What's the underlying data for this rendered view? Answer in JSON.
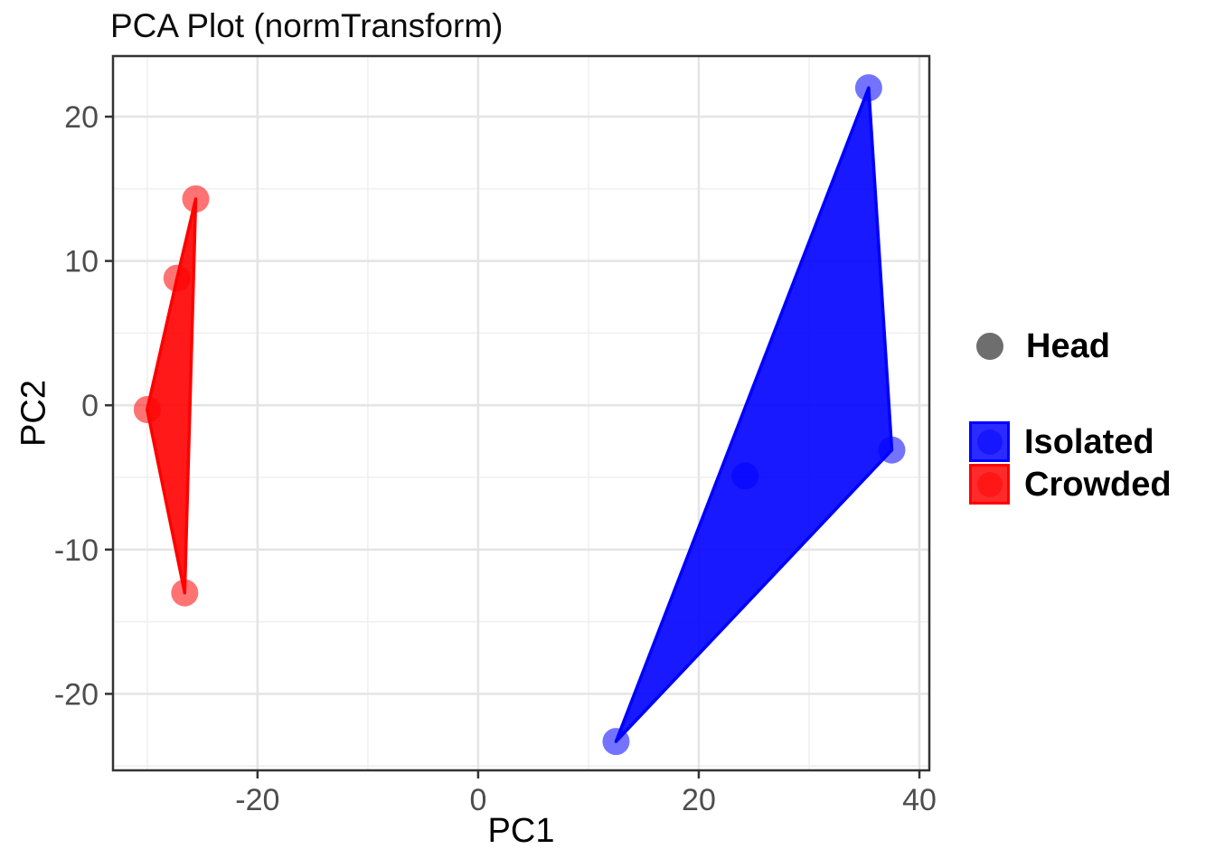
{
  "title": "PCA Plot (normTransform)",
  "colors": {
    "isolated_blue": "#0000FF",
    "crowded_red": "#FF0000",
    "head_gray": "#6E6E6E",
    "panel_border": "#333333",
    "grid_major": "#E4E4E4",
    "grid_minor": "#EFEFEF",
    "tick_mark": "#333333",
    "tick_label": "#4D4D4D",
    "point_alpha": 0.55,
    "polygon_alpha": 0.9
  },
  "legend": {
    "head": {
      "label": "Head",
      "color": "#6E6E6E"
    },
    "groups": [
      {
        "label": "Isolated",
        "color": "#0000FF"
      },
      {
        "label": "Crowded",
        "color": "#FF0000"
      }
    ]
  },
  "chart_data": {
    "type": "scatter",
    "title": "PCA Plot (normTransform)",
    "xlabel": "PC1",
    "ylabel": "PC2",
    "xlim": [
      -33.1,
      40.9
    ],
    "ylim": [
      -25.3,
      24.2
    ],
    "x_ticks": [
      -20,
      0,
      20,
      40
    ],
    "x_minor_ticks": [
      -30,
      -10,
      10,
      30
    ],
    "y_ticks": [
      -20,
      -10,
      0,
      10,
      20
    ],
    "y_minor_ticks": [
      -25,
      -15,
      -5,
      5,
      15
    ],
    "grid": true,
    "legend_position": "right",
    "point_legend_label": "Head",
    "series": [
      {
        "name": "Isolated",
        "color": "#0000FF",
        "points": [
          [
            35.4,
            22.0
          ],
          [
            37.5,
            -3.1
          ],
          [
            24.2,
            -4.9
          ],
          [
            12.5,
            -23.3
          ]
        ],
        "hull": [
          [
            35.4,
            22.0
          ],
          [
            37.5,
            -3.1
          ],
          [
            12.5,
            -23.3
          ]
        ]
      },
      {
        "name": "Crowded",
        "color": "#FF0000",
        "points": [
          [
            -25.6,
            14.3
          ],
          [
            -27.3,
            8.8
          ],
          [
            -30.0,
            -0.3
          ],
          [
            -26.6,
            -13.0
          ]
        ],
        "hull": [
          [
            -25.6,
            14.3
          ],
          [
            -27.3,
            8.8
          ],
          [
            -30.0,
            -0.3
          ],
          [
            -26.6,
            -13.0
          ]
        ]
      }
    ]
  }
}
